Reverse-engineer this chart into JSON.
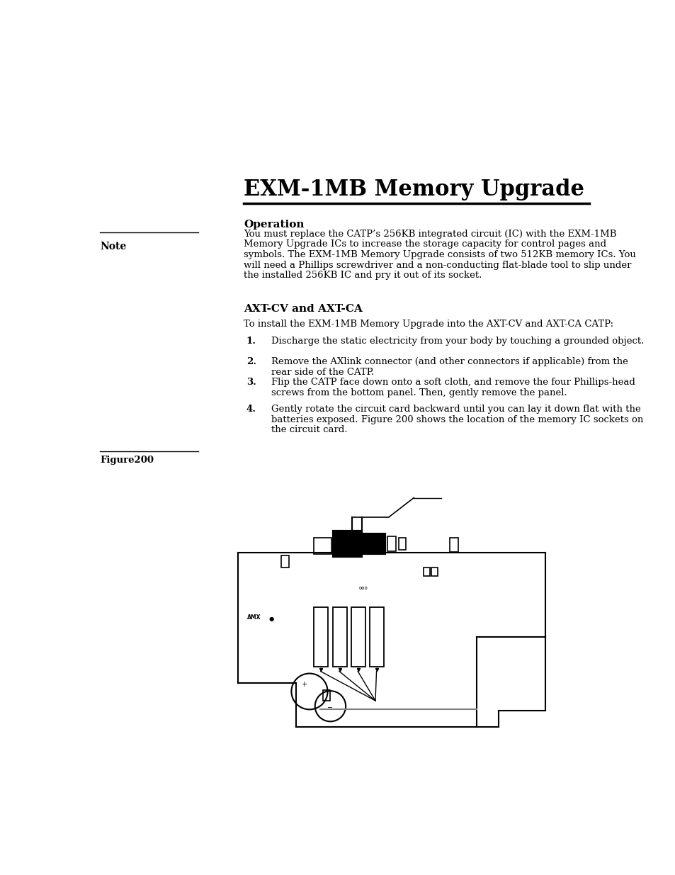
{
  "title": "EXM-1MB Memory Upgrade",
  "section1_heading": "Operation",
  "section1_body": "You must replace the CATP’s 256KB integrated circuit (IC) with the EXM-1MB\nMemory Upgrade ICs to increase the storage capacity for control pages and\nsymbols. The EXM-1MB Memory Upgrade consists of two 512KB memory ICs. You\nwill need a Phillips screwdriver and a non-conducting flat-blade tool to slip under\nthe installed 256KB IC and pry it out of its socket.",
  "note_label": "Note",
  "section2_heading": "AXT-CV and AXT-CA",
  "section2_intro": "To install the EXM-1MB Memory Upgrade into the AXT-CV and AXT-CA CATP:",
  "items": [
    "Discharge the static electricity from your body by touching a grounded object.",
    "Remove the AXlink connector (and other connectors if applicable) from the\nrear side of the CATP.",
    "Flip the CATP face down onto a soft cloth, and remove the four Phillips-head\nscrews from the bottom panel. Then, gently remove the panel.",
    "Gently rotate the circuit card backward until you can lay it down flat with the\nbatteries exposed. Figure 200 shows the location of the memory IC sockets on\nthe circuit card."
  ],
  "figure_label": "Figure200",
  "background_color": "#ffffff",
  "text_color": "#000000"
}
